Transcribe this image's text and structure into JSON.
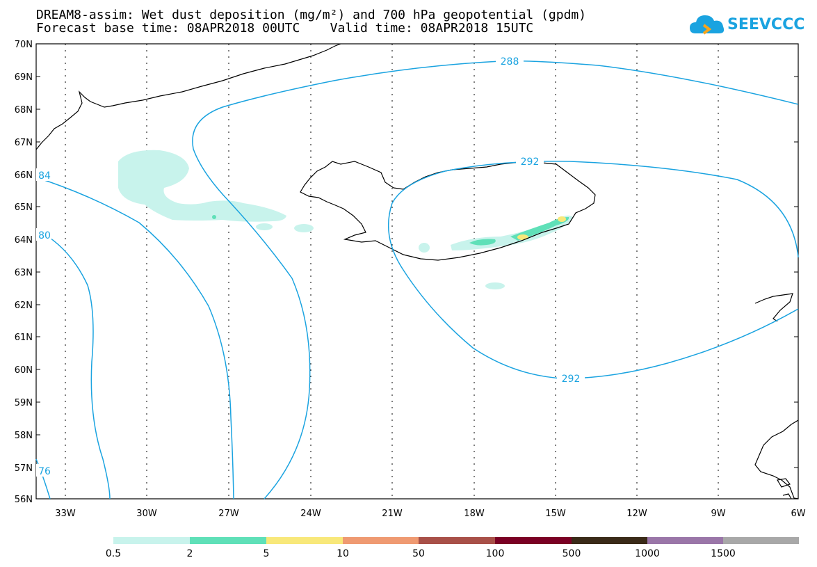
{
  "title": {
    "line1": "DREAM8-assim: Wet dust deposition (mg/m²) and 700 hPa geopotential (gpdm)",
    "line2": "Forecast base time: 08APR2018 00UTC    Valid time: 08APR2018 15UTC"
  },
  "logo": {
    "text": "SEEVCCC",
    "icon": "cloud-icon",
    "color": "#1aa3e0"
  },
  "map": {
    "lat_labels": [
      "70N",
      "69N",
      "68N",
      "67N",
      "66N",
      "65N",
      "64N",
      "63N",
      "62N",
      "61N",
      "60N",
      "59N",
      "58N",
      "57N",
      "56N"
    ],
    "lon_labels": [
      "33W",
      "30W",
      "27W",
      "24W",
      "21W",
      "18W",
      "15W",
      "12W",
      "9W",
      "6W"
    ],
    "contour_labels": [
      "288",
      "292",
      "292",
      "84",
      "80",
      "76"
    ],
    "contour_color": "#1aa3e0",
    "coast_color": "#000000"
  },
  "legend": {
    "labels": [
      "0.5",
      "2",
      "5",
      "10",
      "50",
      "100",
      "500",
      "1000",
      "1500"
    ],
    "colors": [
      "#c8f3ec",
      "#5fe0b8",
      "#f8e87a",
      "#ef9a72",
      "#a85048",
      "#7a0024",
      "#3a2a18",
      "#9a76a8",
      "#a8a8a8"
    ]
  }
}
